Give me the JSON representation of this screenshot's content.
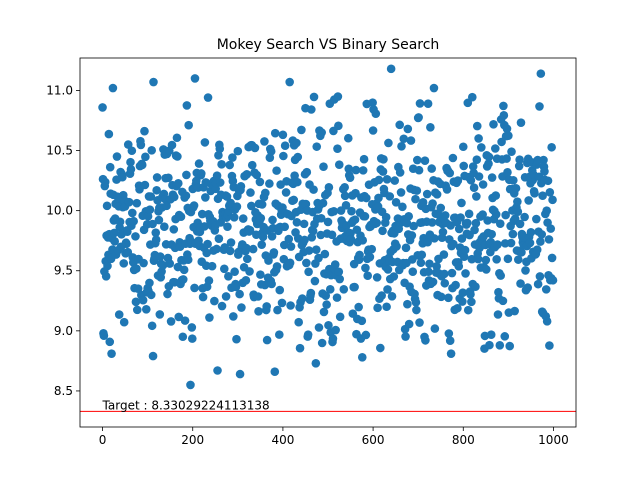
{
  "chart_data": {
    "type": "scatter",
    "title": "Mokey Search VS Binary Search",
    "xlabel": "",
    "ylabel": "",
    "xlim": [
      -50,
      1050
    ],
    "ylim": [
      8.2,
      11.27
    ],
    "x_ticks": [
      0,
      200,
      400,
      600,
      800,
      1000
    ],
    "y_ticks": [
      8.5,
      9.0,
      9.5,
      10.0,
      10.5,
      11.0
    ],
    "grid": false,
    "legend": "none",
    "point_color": "#1f77b4",
    "n_points": 1000,
    "x_range": [
      0,
      999
    ],
    "y_range_observed": [
      8.55,
      11.18
    ],
    "y_distribution": "approximately normal, mean 9.9, sd 0.45 (values estimated)",
    "highlighted_points": [
      {
        "x": 23,
        "y": 11.02
      },
      {
        "x": 113,
        "y": 11.07
      },
      {
        "x": 205,
        "y": 11.1
      },
      {
        "x": 415,
        "y": 11.07
      },
      {
        "x": 640,
        "y": 11.18
      },
      {
        "x": 735,
        "y": 11.02
      },
      {
        "x": 972,
        "y": 11.14
      },
      {
        "x": 195,
        "y": 8.55
      },
      {
        "x": 255,
        "y": 8.67
      },
      {
        "x": 305,
        "y": 8.64
      },
      {
        "x": 382,
        "y": 8.66
      },
      {
        "x": 473,
        "y": 8.73
      },
      {
        "x": 112,
        "y": 8.79
      },
      {
        "x": 20,
        "y": 8.81
      },
      {
        "x": 2,
        "y": 8.98
      },
      {
        "x": 773,
        "y": 8.81
      },
      {
        "x": 576,
        "y": 8.78
      }
    ],
    "target_line": {
      "y": 8.33029224113138,
      "label": "Target : 8.33029224113138",
      "color": "#ff0000"
    }
  }
}
